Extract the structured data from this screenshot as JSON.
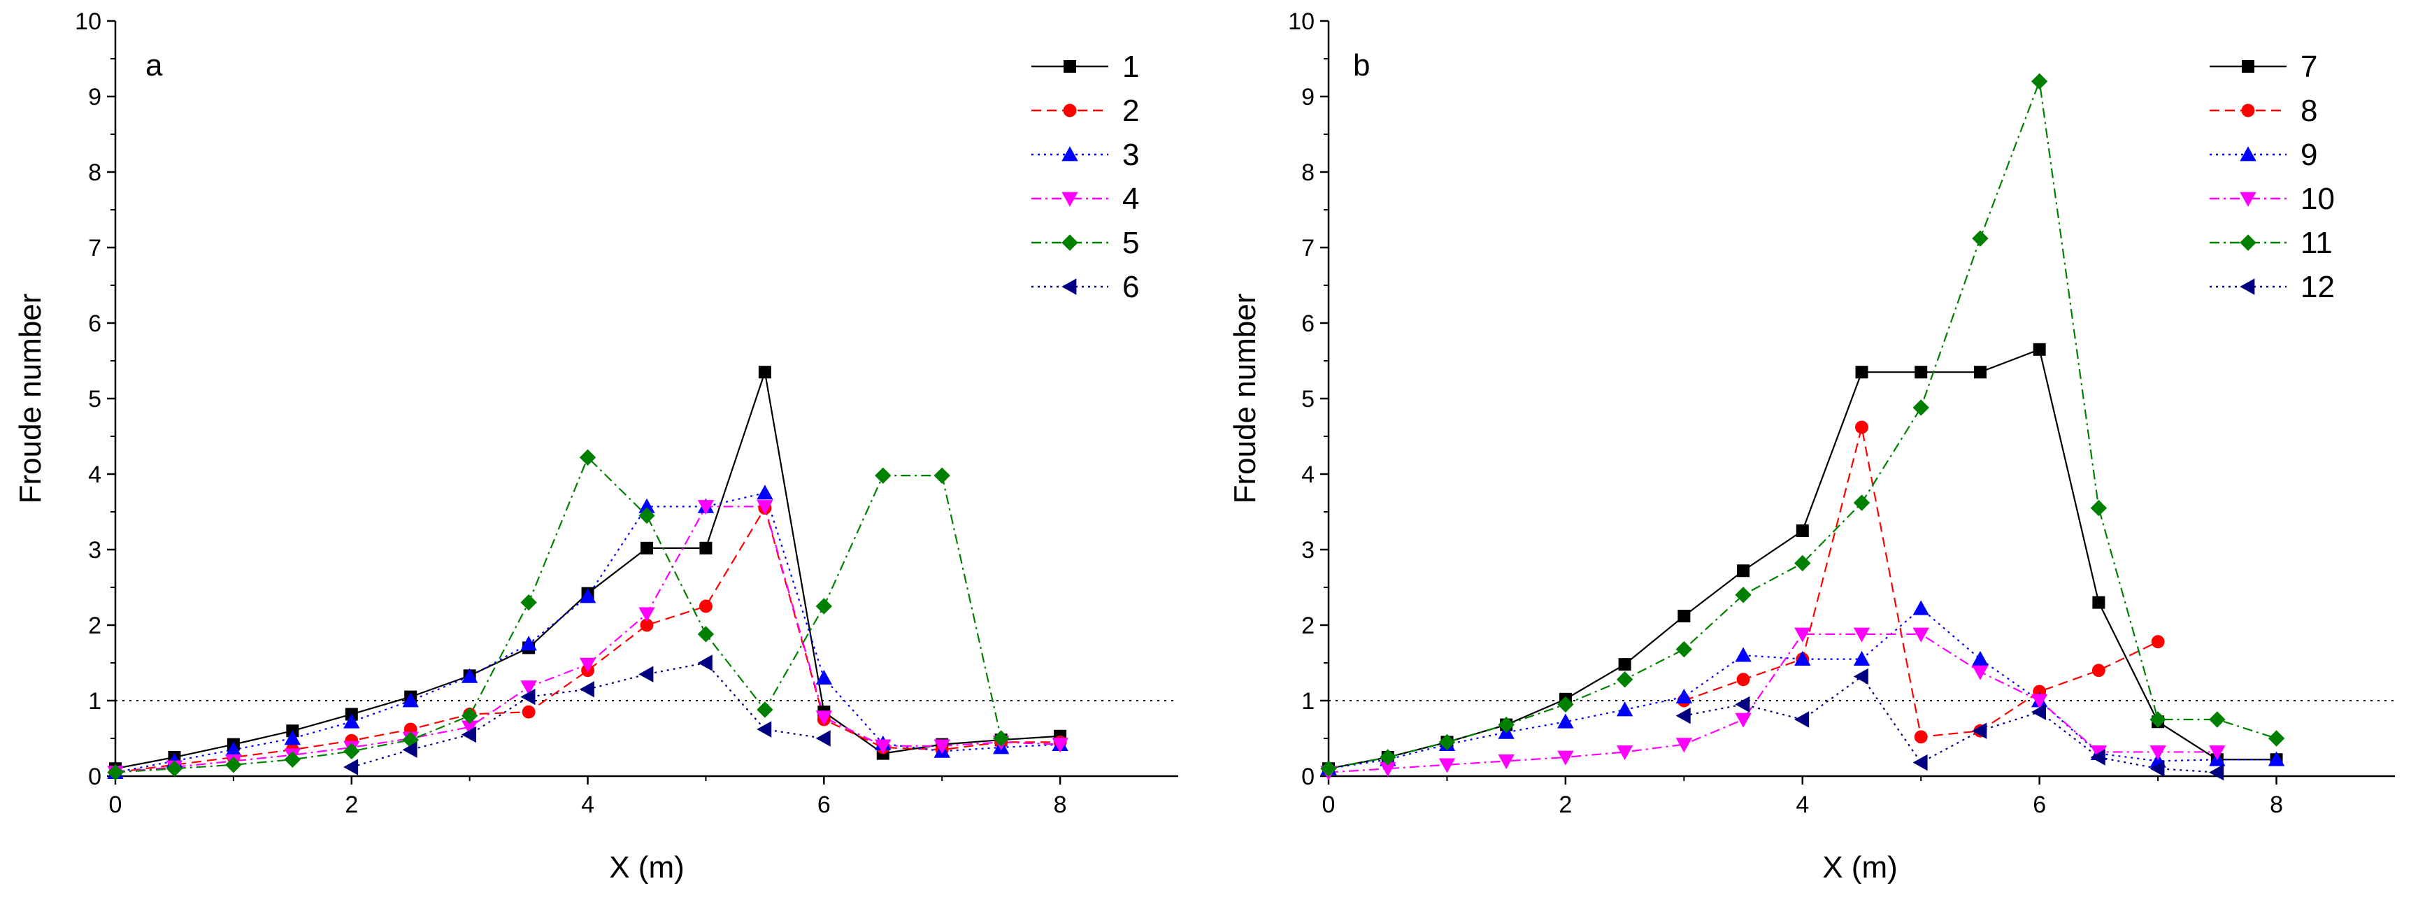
{
  "chart_data": [
    {
      "type": "line",
      "panel_label": "a",
      "xlabel": "X (m)",
      "ylabel": "Froude number",
      "xlim": [
        0,
        9
      ],
      "ylim": [
        0,
        10
      ],
      "xticks": [
        0,
        2,
        4,
        6,
        8
      ],
      "yticks": [
        0,
        1,
        2,
        3,
        4,
        5,
        6,
        7,
        8,
        9,
        10
      ],
      "reference_line": {
        "y": 1,
        "style": "dotted"
      },
      "legend_position": "top-right",
      "series": [
        {
          "name": "1",
          "color": "#000000",
          "marker": "square",
          "dash": "solid",
          "x": [
            0,
            0.5,
            1,
            1.5,
            2,
            2.5,
            3,
            3.5,
            4,
            4.5,
            5,
            5.5,
            6,
            6.5,
            7,
            7.5,
            8
          ],
          "y": [
            0.1,
            0.25,
            0.42,
            0.6,
            0.82,
            1.05,
            1.33,
            1.7,
            2.42,
            3.02,
            3.02,
            5.35,
            0.85,
            0.3,
            0.42,
            0.48,
            0.53
          ]
        },
        {
          "name": "2",
          "color": "#ff0000",
          "marker": "circle",
          "dash": "dash",
          "x": [
            0,
            0.5,
            1,
            1.5,
            2,
            2.5,
            3,
            3.5,
            4,
            4.5,
            5,
            5.5,
            6,
            6.5,
            7,
            7.5,
            8
          ],
          "y": [
            0.05,
            0.15,
            0.25,
            0.35,
            0.47,
            0.62,
            0.82,
            0.85,
            1.4,
            2.0,
            2.25,
            3.55,
            0.75,
            0.38,
            0.35,
            0.45,
            0.45
          ]
        },
        {
          "name": "3",
          "color": "#0000ff",
          "marker": "triangle-up",
          "dash": "dot",
          "x": [
            0,
            0.5,
            1,
            1.5,
            2,
            2.5,
            3,
            3.5,
            4,
            4.5,
            5,
            5.5,
            6,
            6.5,
            7,
            7.5,
            8
          ],
          "y": [
            0.05,
            0.2,
            0.35,
            0.5,
            0.72,
            1.0,
            1.32,
            1.75,
            2.38,
            3.57,
            3.57,
            3.75,
            1.3,
            0.43,
            0.33,
            0.38,
            0.42
          ]
        },
        {
          "name": "4",
          "color": "#ff00ff",
          "marker": "triangle-down",
          "dash": "dashdot",
          "x": [
            0,
            0.5,
            1,
            1.5,
            2,
            2.5,
            3,
            3.5,
            4,
            4.5,
            5,
            5.5,
            6,
            6.5,
            7,
            7.5,
            8
          ],
          "y": [
            0.05,
            0.12,
            0.2,
            0.28,
            0.38,
            0.5,
            0.65,
            1.18,
            1.48,
            2.15,
            3.57,
            3.57,
            0.78,
            0.4,
            0.4,
            0.45,
            0.42
          ]
        },
        {
          "name": "5",
          "color": "#008000",
          "marker": "diamond",
          "dash": "dashdot",
          "x": [
            0,
            0.5,
            1,
            1.5,
            2,
            2.5,
            3,
            3.5,
            4,
            4.5,
            5,
            5.5,
            6,
            6.5,
            7,
            7.5
          ],
          "y": [
            0.05,
            0.1,
            0.15,
            0.22,
            0.33,
            0.48,
            0.8,
            2.3,
            4.22,
            3.45,
            1.88,
            0.88,
            2.25,
            3.98,
            3.98,
            0.5
          ]
        },
        {
          "name": "6",
          "color": "#000080",
          "marker": "triangle-left",
          "dash": "dot",
          "x": [
            2,
            2.5,
            3,
            3.5,
            4,
            4.5,
            5,
            5.5,
            6
          ],
          "y": [
            0.12,
            0.35,
            0.55,
            1.05,
            1.15,
            1.35,
            1.5,
            0.62,
            0.5
          ]
        }
      ]
    },
    {
      "type": "line",
      "panel_label": "b",
      "xlabel": "X (m)",
      "ylabel": "Froude number",
      "xlim": [
        0,
        9
      ],
      "ylim": [
        0,
        10
      ],
      "xticks": [
        0,
        2,
        4,
        6,
        8
      ],
      "yticks": [
        0,
        1,
        2,
        3,
        4,
        5,
        6,
        7,
        8,
        9,
        10
      ],
      "reference_line": {
        "y": 1,
        "style": "dotted"
      },
      "legend_position": "top-right",
      "series": [
        {
          "name": "7",
          "color": "#000000",
          "marker": "square",
          "dash": "solid",
          "x": [
            0,
            0.5,
            1,
            1.5,
            2,
            2.5,
            3,
            3.5,
            4,
            4.5,
            5,
            5.5,
            6,
            6.5,
            7,
            7.5,
            8
          ],
          "y": [
            0.1,
            0.25,
            0.45,
            0.68,
            1.02,
            1.48,
            2.12,
            2.72,
            3.25,
            5.35,
            5.35,
            5.35,
            5.65,
            2.3,
            0.72,
            0.22,
            0.22
          ]
        },
        {
          "name": "8",
          "color": "#ff0000",
          "marker": "circle",
          "dash": "dash",
          "x": [
            3,
            3.5,
            4,
            4.5,
            5,
            5.5,
            6,
            6.5,
            7
          ],
          "y": [
            1.0,
            1.28,
            1.55,
            4.62,
            0.52,
            0.6,
            1.12,
            1.4,
            1.78
          ]
        },
        {
          "name": "9",
          "color": "#0000ff",
          "marker": "triangle-up",
          "dash": "dot",
          "x": [
            0,
            0.5,
            1,
            1.5,
            2,
            2.5,
            3,
            3.5,
            4,
            4.5,
            5,
            5.5,
            6,
            6.5,
            7,
            7.5,
            8
          ],
          "y": [
            0.1,
            0.22,
            0.42,
            0.58,
            0.72,
            0.88,
            1.05,
            1.6,
            1.55,
            1.55,
            2.22,
            1.55,
            1.0,
            0.3,
            0.2,
            0.22,
            0.22
          ]
        },
        {
          "name": "10",
          "color": "#ff00ff",
          "marker": "triangle-down",
          "dash": "dashdot",
          "x": [
            0,
            0.5,
            1,
            1.5,
            2,
            2.5,
            3,
            3.5,
            4,
            4.5,
            5,
            5.5,
            6,
            6.5,
            7,
            7.5
          ],
          "y": [
            0.05,
            0.1,
            0.15,
            0.2,
            0.25,
            0.32,
            0.42,
            0.75,
            1.88,
            1.88,
            1.88,
            1.38,
            1.0,
            0.32,
            0.32,
            0.32
          ]
        },
        {
          "name": "11",
          "color": "#008000",
          "marker": "diamond",
          "dash": "dashdot",
          "x": [
            0,
            0.5,
            1,
            1.5,
            2,
            2.5,
            3,
            3.5,
            4,
            4.5,
            5,
            5.5,
            6,
            6.5,
            7,
            7.5,
            8
          ],
          "y": [
            0.1,
            0.25,
            0.45,
            0.68,
            0.95,
            1.28,
            1.68,
            2.4,
            2.82,
            3.62,
            4.88,
            7.12,
            9.2,
            3.55,
            0.75,
            0.75,
            0.5
          ]
        },
        {
          "name": "12",
          "color": "#000080",
          "marker": "triangle-left",
          "dash": "dot",
          "x": [
            3,
            3.5,
            4,
            4.5,
            5,
            5.5,
            6,
            6.5,
            7,
            7.5
          ],
          "y": [
            0.8,
            0.95,
            0.75,
            1.32,
            0.18,
            0.6,
            0.85,
            0.25,
            0.1,
            0.05
          ]
        }
      ]
    }
  ]
}
